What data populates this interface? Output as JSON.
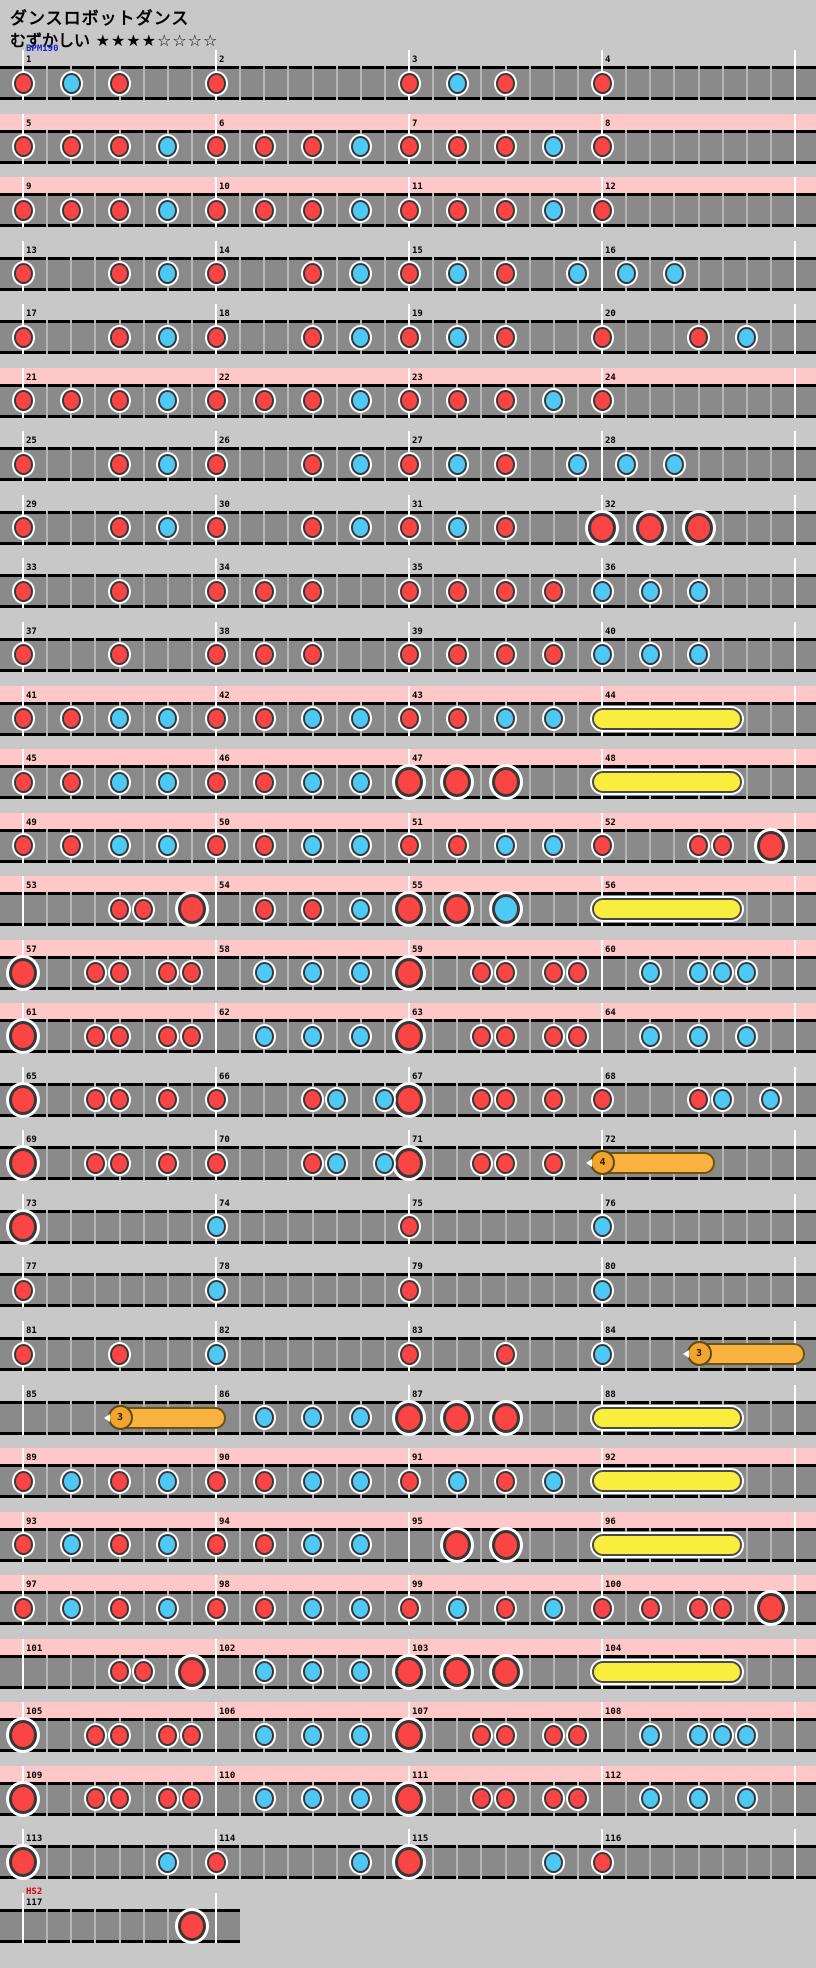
{
  "header": {
    "title": "ダンスロボットダンス",
    "difficulty_label": "むずかしい",
    "stars": "★★★★☆☆☆☆"
  },
  "colors": {
    "page_bg": "#c8c8c8",
    "track": "#8a8a8a",
    "gogo_band": "#ffc8c8",
    "measure_line": "#ffffff",
    "don": "#fb4545",
    "ka": "#4ec9f5",
    "roll": "#f9ee3d",
    "balloon": "#f9b13f",
    "balloon_head": "#f2a52e",
    "bpm_text": "#2222cc",
    "hs_text": "#dd0000"
  },
  "chart": {
    "bpm_label": "BPM190",
    "bpm_label_measure": 1,
    "hs_label": "HS2",
    "hs_label_measure": 117,
    "total_measures": 117,
    "measures_per_row": 4,
    "subdivisions_per_measure": 16,
    "note_types": {
      "d": "don (red)",
      "k": "ka (blue)",
      "D": "big don (red)",
      "K": "big ka (blue)",
      "roll": "drumroll (yellow bar)",
      "bal": "balloon (orange bar with count)"
    },
    "gogo_ranges": [
      [
        5,
        12
      ],
      [
        21,
        24
      ],
      [
        41,
        64
      ],
      [
        89,
        112
      ]
    ],
    "measures": [
      [
        [
          0,
          "d"
        ],
        [
          4,
          "k"
        ],
        [
          8,
          "d"
        ]
      ],
      [
        [
          0,
          "d"
        ]
      ],
      [
        [
          0,
          "d"
        ],
        [
          4,
          "k"
        ],
        [
          8,
          "d"
        ]
      ],
      [
        [
          0,
          "d"
        ]
      ],
      [
        [
          0,
          "d"
        ],
        [
          4,
          "d"
        ],
        [
          8,
          "d"
        ],
        [
          12,
          "k"
        ]
      ],
      [
        [
          0,
          "d"
        ],
        [
          4,
          "d"
        ],
        [
          8,
          "d"
        ],
        [
          12,
          "k"
        ]
      ],
      [
        [
          0,
          "d"
        ],
        [
          4,
          "d"
        ],
        [
          8,
          "d"
        ],
        [
          12,
          "k"
        ]
      ],
      [
        [
          0,
          "d"
        ]
      ],
      [
        [
          0,
          "d"
        ],
        [
          4,
          "d"
        ],
        [
          8,
          "d"
        ],
        [
          12,
          "k"
        ]
      ],
      [
        [
          0,
          "d"
        ],
        [
          4,
          "d"
        ],
        [
          8,
          "d"
        ],
        [
          12,
          "k"
        ]
      ],
      [
        [
          0,
          "d"
        ],
        [
          4,
          "d"
        ],
        [
          8,
          "d"
        ],
        [
          12,
          "k"
        ]
      ],
      [
        [
          0,
          "d"
        ]
      ],
      [
        [
          0,
          "d"
        ],
        [
          8,
          "d"
        ],
        [
          12,
          "k"
        ]
      ],
      [
        [
          0,
          "d"
        ],
        [
          8,
          "d"
        ],
        [
          12,
          "k"
        ]
      ],
      [
        [
          0,
          "d"
        ],
        [
          4,
          "k"
        ],
        [
          8,
          "d"
        ],
        [
          14,
          "k"
        ]
      ],
      [
        [
          2,
          "k"
        ],
        [
          6,
          "k"
        ]
      ],
      [
        [
          0,
          "d"
        ],
        [
          8,
          "d"
        ],
        [
          12,
          "k"
        ]
      ],
      [
        [
          0,
          "d"
        ],
        [
          8,
          "d"
        ],
        [
          12,
          "k"
        ]
      ],
      [
        [
          0,
          "d"
        ],
        [
          4,
          "k"
        ],
        [
          8,
          "d"
        ]
      ],
      [
        [
          0,
          "d"
        ],
        [
          8,
          "d"
        ],
        [
          12,
          "k"
        ]
      ],
      [
        [
          0,
          "d"
        ],
        [
          4,
          "d"
        ],
        [
          8,
          "d"
        ],
        [
          12,
          "k"
        ]
      ],
      [
        [
          0,
          "d"
        ],
        [
          4,
          "d"
        ],
        [
          8,
          "d"
        ],
        [
          12,
          "k"
        ]
      ],
      [
        [
          0,
          "d"
        ],
        [
          4,
          "d"
        ],
        [
          8,
          "d"
        ],
        [
          12,
          "k"
        ]
      ],
      [
        [
          0,
          "d"
        ]
      ],
      [
        [
          0,
          "d"
        ],
        [
          8,
          "d"
        ],
        [
          12,
          "k"
        ]
      ],
      [
        [
          0,
          "d"
        ],
        [
          8,
          "d"
        ],
        [
          12,
          "k"
        ]
      ],
      [
        [
          0,
          "d"
        ],
        [
          4,
          "k"
        ],
        [
          8,
          "d"
        ],
        [
          14,
          "k"
        ]
      ],
      [
        [
          2,
          "k"
        ],
        [
          6,
          "k"
        ]
      ],
      [
        [
          0,
          "d"
        ],
        [
          8,
          "d"
        ],
        [
          12,
          "k"
        ]
      ],
      [
        [
          0,
          "d"
        ],
        [
          8,
          "d"
        ],
        [
          12,
          "k"
        ]
      ],
      [
        [
          0,
          "d"
        ],
        [
          4,
          "k"
        ],
        [
          8,
          "d"
        ]
      ],
      [
        [
          0,
          "D"
        ],
        [
          4,
          "D"
        ],
        [
          8,
          "D"
        ]
      ],
      [
        [
          0,
          "d"
        ],
        [
          8,
          "d"
        ]
      ],
      [
        [
          0,
          "d"
        ],
        [
          4,
          "d"
        ],
        [
          8,
          "d"
        ]
      ],
      [
        [
          0,
          "d"
        ],
        [
          4,
          "d"
        ],
        [
          8,
          "d"
        ],
        [
          12,
          "d"
        ]
      ],
      [
        [
          0,
          "k"
        ],
        [
          4,
          "k"
        ],
        [
          8,
          "k"
        ]
      ],
      [
        [
          0,
          "d"
        ],
        [
          8,
          "d"
        ]
      ],
      [
        [
          0,
          "d"
        ],
        [
          4,
          "d"
        ],
        [
          8,
          "d"
        ]
      ],
      [
        [
          0,
          "d"
        ],
        [
          4,
          "d"
        ],
        [
          8,
          "d"
        ],
        [
          12,
          "d"
        ]
      ],
      [
        [
          0,
          "k"
        ],
        [
          4,
          "k"
        ],
        [
          8,
          "k"
        ]
      ],
      [
        [
          0,
          "d"
        ],
        [
          4,
          "d"
        ],
        [
          8,
          "k"
        ],
        [
          12,
          "k"
        ]
      ],
      [
        [
          0,
          "d"
        ],
        [
          4,
          "d"
        ],
        [
          8,
          "k"
        ],
        [
          12,
          "k"
        ]
      ],
      [
        [
          0,
          "d"
        ],
        [
          4,
          "d"
        ],
        [
          8,
          "k"
        ],
        [
          12,
          "k"
        ]
      ],
      [
        [
          0,
          "roll",
          10.75
        ]
      ],
      [
        [
          0,
          "d"
        ],
        [
          4,
          "d"
        ],
        [
          8,
          "k"
        ],
        [
          12,
          "k"
        ]
      ],
      [
        [
          0,
          "d"
        ],
        [
          4,
          "d"
        ],
        [
          8,
          "k"
        ],
        [
          12,
          "k"
        ]
      ],
      [
        [
          0,
          "D"
        ],
        [
          4,
          "D"
        ],
        [
          8,
          "D"
        ]
      ],
      [
        [
          0,
          "roll",
          10.75
        ]
      ],
      [
        [
          0,
          "d"
        ],
        [
          4,
          "d"
        ],
        [
          8,
          "k"
        ],
        [
          12,
          "k"
        ]
      ],
      [
        [
          0,
          "d"
        ],
        [
          4,
          "d"
        ],
        [
          8,
          "k"
        ],
        [
          12,
          "k"
        ]
      ],
      [
        [
          0,
          "d"
        ],
        [
          4,
          "d"
        ],
        [
          8,
          "k"
        ],
        [
          12,
          "k"
        ]
      ],
      [
        [
          0,
          "d"
        ],
        [
          8,
          "d"
        ],
        [
          10,
          "d"
        ],
        [
          14,
          "D"
        ]
      ],
      [
        [
          8,
          "d"
        ],
        [
          10,
          "d"
        ],
        [
          14,
          "D"
        ]
      ],
      [
        [
          4,
          "d"
        ],
        [
          8,
          "d"
        ],
        [
          12,
          "k"
        ]
      ],
      [
        [
          0,
          "D"
        ],
        [
          4,
          "D"
        ],
        [
          8,
          "K"
        ]
      ],
      [
        [
          0,
          "roll",
          10.75
        ]
      ],
      [
        [
          0,
          "D"
        ],
        [
          6,
          "d"
        ],
        [
          8,
          "d"
        ],
        [
          12,
          "d"
        ],
        [
          14,
          "d"
        ]
      ],
      [
        [
          4,
          "k"
        ],
        [
          8,
          "k"
        ],
        [
          12,
          "k"
        ]
      ],
      [
        [
          0,
          "D"
        ],
        [
          6,
          "d"
        ],
        [
          8,
          "d"
        ],
        [
          12,
          "d"
        ],
        [
          14,
          "d"
        ]
      ],
      [
        [
          4,
          "k"
        ],
        [
          8,
          "k"
        ],
        [
          10,
          "k"
        ],
        [
          12,
          "k"
        ]
      ],
      [
        [
          0,
          "D"
        ],
        [
          6,
          "d"
        ],
        [
          8,
          "d"
        ],
        [
          12,
          "d"
        ],
        [
          14,
          "d"
        ]
      ],
      [
        [
          4,
          "k"
        ],
        [
          8,
          "k"
        ],
        [
          12,
          "k"
        ]
      ],
      [
        [
          0,
          "D"
        ],
        [
          6,
          "d"
        ],
        [
          8,
          "d"
        ],
        [
          12,
          "d"
        ],
        [
          14,
          "d"
        ]
      ],
      [
        [
          4,
          "k"
        ],
        [
          8,
          "k"
        ],
        [
          12,
          "k"
        ]
      ],
      [
        [
          0,
          "D"
        ],
        [
          6,
          "d"
        ],
        [
          8,
          "d"
        ],
        [
          12,
          "d"
        ]
      ],
      [
        [
          0,
          "d"
        ],
        [
          8,
          "d"
        ],
        [
          10,
          "k"
        ],
        [
          14,
          "k"
        ]
      ],
      [
        [
          0,
          "D"
        ],
        [
          6,
          "d"
        ],
        [
          8,
          "d"
        ],
        [
          12,
          "d"
        ]
      ],
      [
        [
          0,
          "d"
        ],
        [
          8,
          "d"
        ],
        [
          10,
          "k"
        ],
        [
          14,
          "k"
        ]
      ],
      [
        [
          0,
          "D"
        ],
        [
          6,
          "d"
        ],
        [
          8,
          "d"
        ],
        [
          12,
          "d"
        ]
      ],
      [
        [
          0,
          "d"
        ],
        [
          8,
          "d"
        ],
        [
          10,
          "k"
        ],
        [
          14,
          "k"
        ]
      ],
      [
        [
          0,
          "D"
        ],
        [
          6,
          "d"
        ],
        [
          8,
          "d"
        ],
        [
          12,
          "d"
        ]
      ],
      [
        [
          0,
          "bal",
          8.5,
          "4"
        ]
      ],
      [
        [
          0,
          "D"
        ]
      ],
      [
        [
          0,
          "k"
        ]
      ],
      [
        [
          0,
          "d"
        ]
      ],
      [
        [
          0,
          "k"
        ]
      ],
      [
        [
          0,
          "d"
        ]
      ],
      [
        [
          0,
          "k"
        ]
      ],
      [
        [
          0,
          "d"
        ]
      ],
      [
        [
          0,
          "k"
        ]
      ],
      [
        [
          0,
          "d"
        ],
        [
          8,
          "d"
        ]
      ],
      [
        [
          0,
          "k"
        ]
      ],
      [
        [
          0,
          "d"
        ],
        [
          8,
          "d"
        ]
      ],
      [
        [
          0,
          "k"
        ],
        [
          8,
          "bal",
          16,
          "3"
        ]
      ],
      [
        [
          8,
          "bal",
          16,
          "3"
        ]
      ],
      [
        [
          4,
          "k"
        ],
        [
          8,
          "k"
        ],
        [
          12,
          "k"
        ]
      ],
      [
        [
          0,
          "D"
        ],
        [
          4,
          "D"
        ],
        [
          8,
          "D"
        ]
      ],
      [
        [
          0,
          "roll",
          10.75
        ]
      ],
      [
        [
          0,
          "d"
        ],
        [
          4,
          "k"
        ],
        [
          8,
          "d"
        ],
        [
          12,
          "k"
        ]
      ],
      [
        [
          0,
          "d"
        ],
        [
          4,
          "d"
        ],
        [
          8,
          "k"
        ],
        [
          12,
          "k"
        ]
      ],
      [
        [
          0,
          "d"
        ],
        [
          4,
          "k"
        ],
        [
          8,
          "d"
        ],
        [
          12,
          "k"
        ]
      ],
      [
        [
          0,
          "roll",
          10.75
        ]
      ],
      [
        [
          0,
          "d"
        ],
        [
          4,
          "k"
        ],
        [
          8,
          "d"
        ],
        [
          12,
          "k"
        ]
      ],
      [
        [
          0,
          "d"
        ],
        [
          4,
          "d"
        ],
        [
          8,
          "k"
        ],
        [
          12,
          "k"
        ]
      ],
      [
        [
          4,
          "D"
        ],
        [
          8,
          "D"
        ]
      ],
      [
        [
          0,
          "roll",
          10.75
        ]
      ],
      [
        [
          0,
          "d"
        ],
        [
          4,
          "k"
        ],
        [
          8,
          "d"
        ],
        [
          12,
          "k"
        ]
      ],
      [
        [
          0,
          "d"
        ],
        [
          4,
          "d"
        ],
        [
          8,
          "k"
        ],
        [
          12,
          "k"
        ]
      ],
      [
        [
          0,
          "d"
        ],
        [
          4,
          "k"
        ],
        [
          8,
          "d"
        ],
        [
          12,
          "k"
        ]
      ],
      [
        [
          0,
          "d"
        ],
        [
          4,
          "d"
        ],
        [
          8,
          "d"
        ],
        [
          10,
          "d"
        ],
        [
          14,
          "D"
        ]
      ],
      [
        [
          8,
          "d"
        ],
        [
          10,
          "d"
        ],
        [
          14,
          "D"
        ]
      ],
      [
        [
          4,
          "k"
        ],
        [
          8,
          "k"
        ],
        [
          12,
          "k"
        ]
      ],
      [
        [
          0,
          "D"
        ],
        [
          4,
          "D"
        ],
        [
          8,
          "D"
        ]
      ],
      [
        [
          0,
          "roll",
          10.75
        ]
      ],
      [
        [
          0,
          "D"
        ],
        [
          6,
          "d"
        ],
        [
          8,
          "d"
        ],
        [
          12,
          "d"
        ],
        [
          14,
          "d"
        ]
      ],
      [
        [
          4,
          "k"
        ],
        [
          8,
          "k"
        ],
        [
          12,
          "k"
        ]
      ],
      [
        [
          0,
          "D"
        ],
        [
          6,
          "d"
        ],
        [
          8,
          "d"
        ],
        [
          12,
          "d"
        ],
        [
          14,
          "d"
        ]
      ],
      [
        [
          4,
          "k"
        ],
        [
          8,
          "k"
        ],
        [
          10,
          "k"
        ],
        [
          12,
          "k"
        ]
      ],
      [
        [
          0,
          "D"
        ],
        [
          6,
          "d"
        ],
        [
          8,
          "d"
        ],
        [
          12,
          "d"
        ],
        [
          14,
          "d"
        ]
      ],
      [
        [
          4,
          "k"
        ],
        [
          8,
          "k"
        ],
        [
          12,
          "k"
        ]
      ],
      [
        [
          0,
          "D"
        ],
        [
          6,
          "d"
        ],
        [
          8,
          "d"
        ],
        [
          12,
          "d"
        ],
        [
          14,
          "d"
        ]
      ],
      [
        [
          4,
          "k"
        ],
        [
          8,
          "k"
        ],
        [
          12,
          "k"
        ]
      ],
      [
        [
          0,
          "D"
        ],
        [
          12,
          "k"
        ]
      ],
      [
        [
          0,
          "d"
        ],
        [
          12,
          "k"
        ]
      ],
      [
        [
          0,
          "D"
        ],
        [
          12,
          "k"
        ]
      ],
      [
        [
          0,
          "d"
        ]
      ],
      [
        [
          14,
          "D"
        ]
      ]
    ]
  }
}
